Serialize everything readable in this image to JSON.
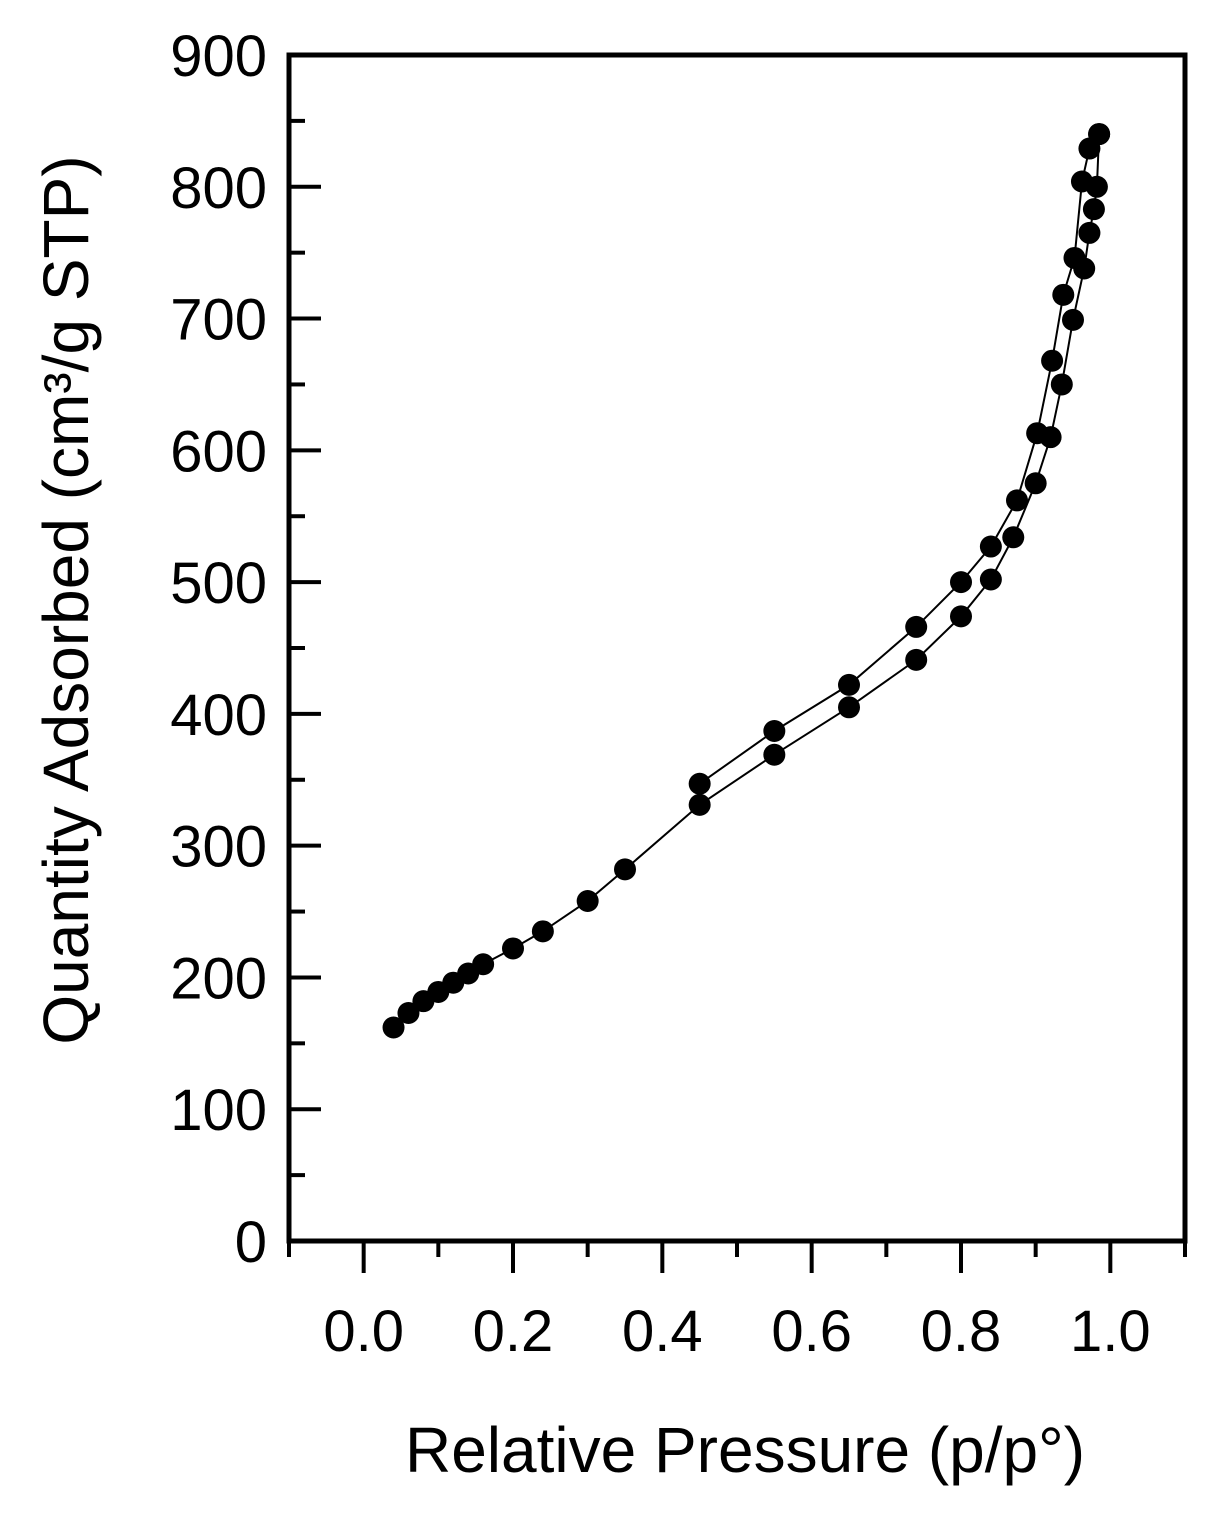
{
  "chart_data": {
    "type": "scatter",
    "xlabel": "Relative Pressure (p/p°)",
    "ylabel": "Quantity Adsorbed (cm³/g STP)",
    "xlim": [
      -0.1,
      1.1
    ],
    "ylim": [
      0,
      900
    ],
    "xticks": [
      "0.0",
      "0.2",
      "0.4",
      "0.6",
      "0.8",
      "1.0"
    ],
    "yticks": [
      "0",
      "100",
      "200",
      "300",
      "400",
      "500",
      "600",
      "700",
      "800",
      "900"
    ],
    "grid": false,
    "series": [
      {
        "x": [
          0.04,
          0.06,
          0.08,
          0.1,
          0.12,
          0.14,
          0.16,
          0.2,
          0.24,
          0.3,
          0.35,
          0.45,
          0.55,
          0.65,
          0.74,
          0.8,
          0.84,
          0.87,
          0.9,
          0.92,
          0.935,
          0.95,
          0.965,
          0.972,
          0.978,
          0.982,
          0.985
        ],
        "y": [
          162,
          173,
          182,
          189,
          196,
          203,
          210,
          222,
          235,
          258,
          282,
          331,
          369,
          405,
          441,
          474,
          502,
          534,
          575,
          610,
          650,
          699,
          738,
          765,
          783,
          800,
          840
        ]
      },
      {
        "x": [
          0.985,
          0.972,
          0.962,
          0.952,
          0.937,
          0.922,
          0.902,
          0.875,
          0.84,
          0.8,
          0.74,
          0.65,
          0.55,
          0.45
        ],
        "y": [
          840,
          829,
          804,
          746,
          718,
          668,
          613,
          562,
          527,
          500,
          466,
          422,
          387,
          347
        ]
      }
    ]
  }
}
